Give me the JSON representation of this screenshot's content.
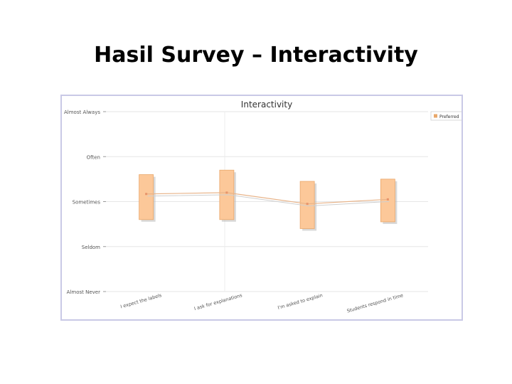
{
  "slide": {
    "title": "Hasil Survey – Interactivity"
  },
  "chart_data": {
    "type": "box",
    "title": "Interactivity",
    "y_levels": [
      "Almost Never",
      "Seldom",
      "Sometimes",
      "Often",
      "Almost Always"
    ],
    "ylim": [
      1,
      5
    ],
    "categories": [
      "I expect the labels",
      "I ask for explanations",
      "I'm asked to explain",
      "Students respond in time"
    ],
    "series": [
      {
        "name": "Preferred",
        "mean": [
          3.17,
          3.2,
          2.95,
          3.05
        ],
        "low": [
          2.6,
          2.6,
          2.4,
          2.55
        ],
        "high": [
          3.6,
          3.7,
          3.45,
          3.5
        ]
      }
    ],
    "grid": true,
    "legend": "top-right",
    "colors": {
      "box": "#fcc899",
      "box_border": "#e9a76a",
      "line": "#e8b48a",
      "shadow": "#b9b9b9"
    }
  }
}
